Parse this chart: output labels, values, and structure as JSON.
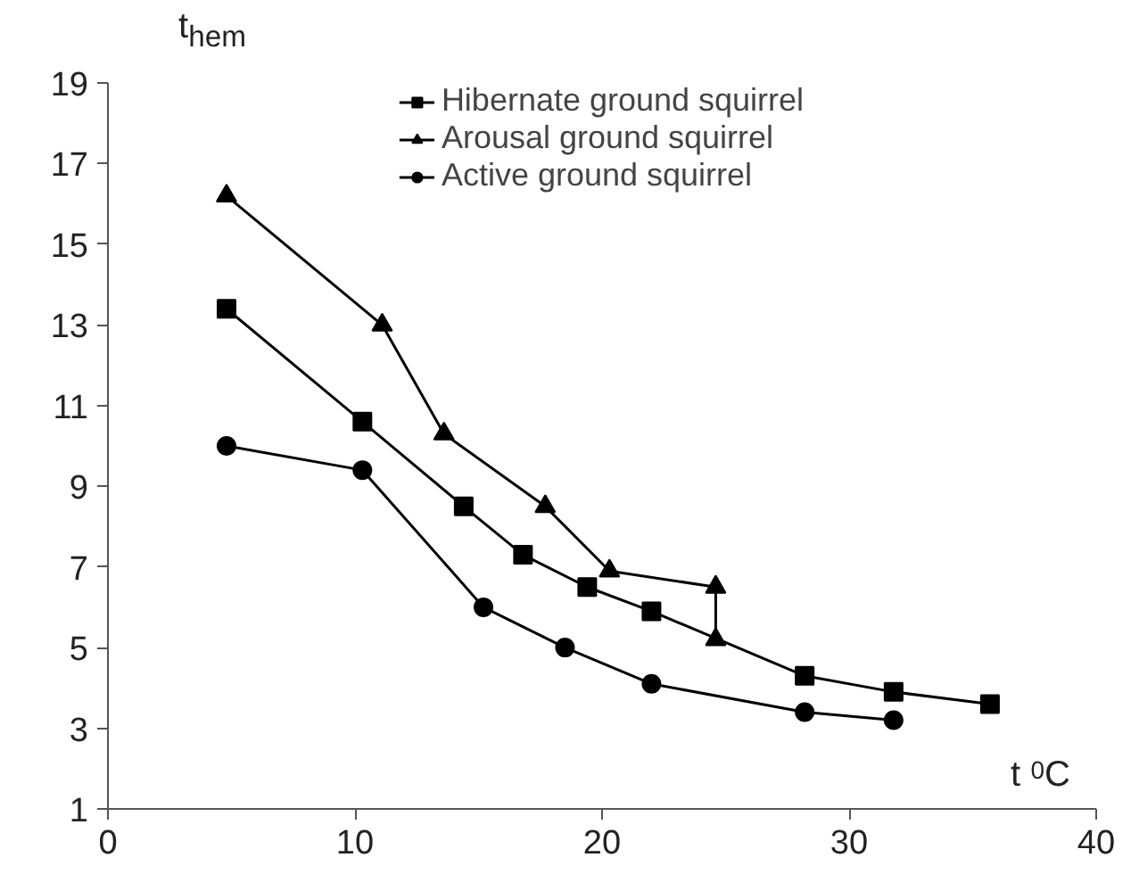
{
  "chart_data": {
    "type": "line",
    "xlabel": "t$^{0}$C",
    "ylabel": "t$_{hem}$",
    "xlim": [
      0,
      40
    ],
    "xticks": [
      0,
      10,
      20,
      30,
      40
    ],
    "ylim": [
      1,
      19
    ],
    "yticks": [
      1,
      3,
      5,
      7,
      9,
      11,
      13,
      15,
      17,
      19
    ],
    "grid": false,
    "legend": "top",
    "line_style": "solid",
    "series": [
      {
        "name": "Hibernate ground squirrel",
        "color": "#000000",
        "marker": "square",
        "x": [
          4.8,
          10.3,
          14.4,
          16.8,
          19.4,
          22.0,
          28.2,
          31.8,
          35.7
        ],
        "values": [
          13.4,
          10.6,
          8.5,
          7.3,
          6.5,
          5.9,
          4.3,
          3.9,
          3.6
        ]
      },
      {
        "name": "Arousal ground squirrel",
        "color": "#000000",
        "marker": "triangle",
        "x": [
          4.8,
          11.1,
          13.6,
          17.7,
          20.3,
          24.6,
          24.6
        ],
        "values": [
          16.2,
          13.0,
          10.3,
          8.5,
          6.9,
          6.5,
          5.2
        ]
      },
      {
        "name": "Active ground squirrel",
        "color": "#000000",
        "marker": "circle",
        "x": [
          4.8,
          10.3,
          15.2,
          18.5,
          22.0,
          28.2,
          31.8
        ],
        "values": [
          10.0,
          9.4,
          6.0,
          5.0,
          4.1,
          3.4,
          3.2
        ]
      }
    ]
  }
}
